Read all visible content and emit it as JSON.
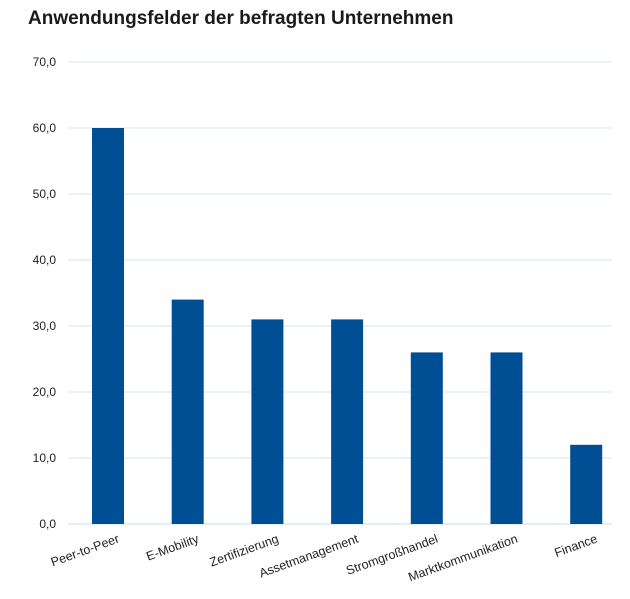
{
  "chart_data": {
    "type": "bar",
    "title": "Anwendungsfelder der befragten Unternehmen",
    "categories": [
      "Peer-to-Peer",
      "E-Mobility",
      "Zertifizierung",
      "Assetmanagement",
      "Stromgroßhandel",
      "Marktkommunikation",
      "Finance"
    ],
    "values": [
      60,
      34,
      31,
      31,
      26,
      26,
      12
    ],
    "ylim": [
      0,
      70
    ],
    "yticks": [
      0,
      10,
      20,
      30,
      40,
      50,
      60,
      70
    ],
    "ytick_labels": [
      "0,0",
      "10,0",
      "20,0",
      "30,0",
      "40,0",
      "50,0",
      "60,0",
      "70,0"
    ],
    "grid": true,
    "legend": "none",
    "bar_color": "#004F94",
    "grid_color": "#D6E4EE"
  }
}
